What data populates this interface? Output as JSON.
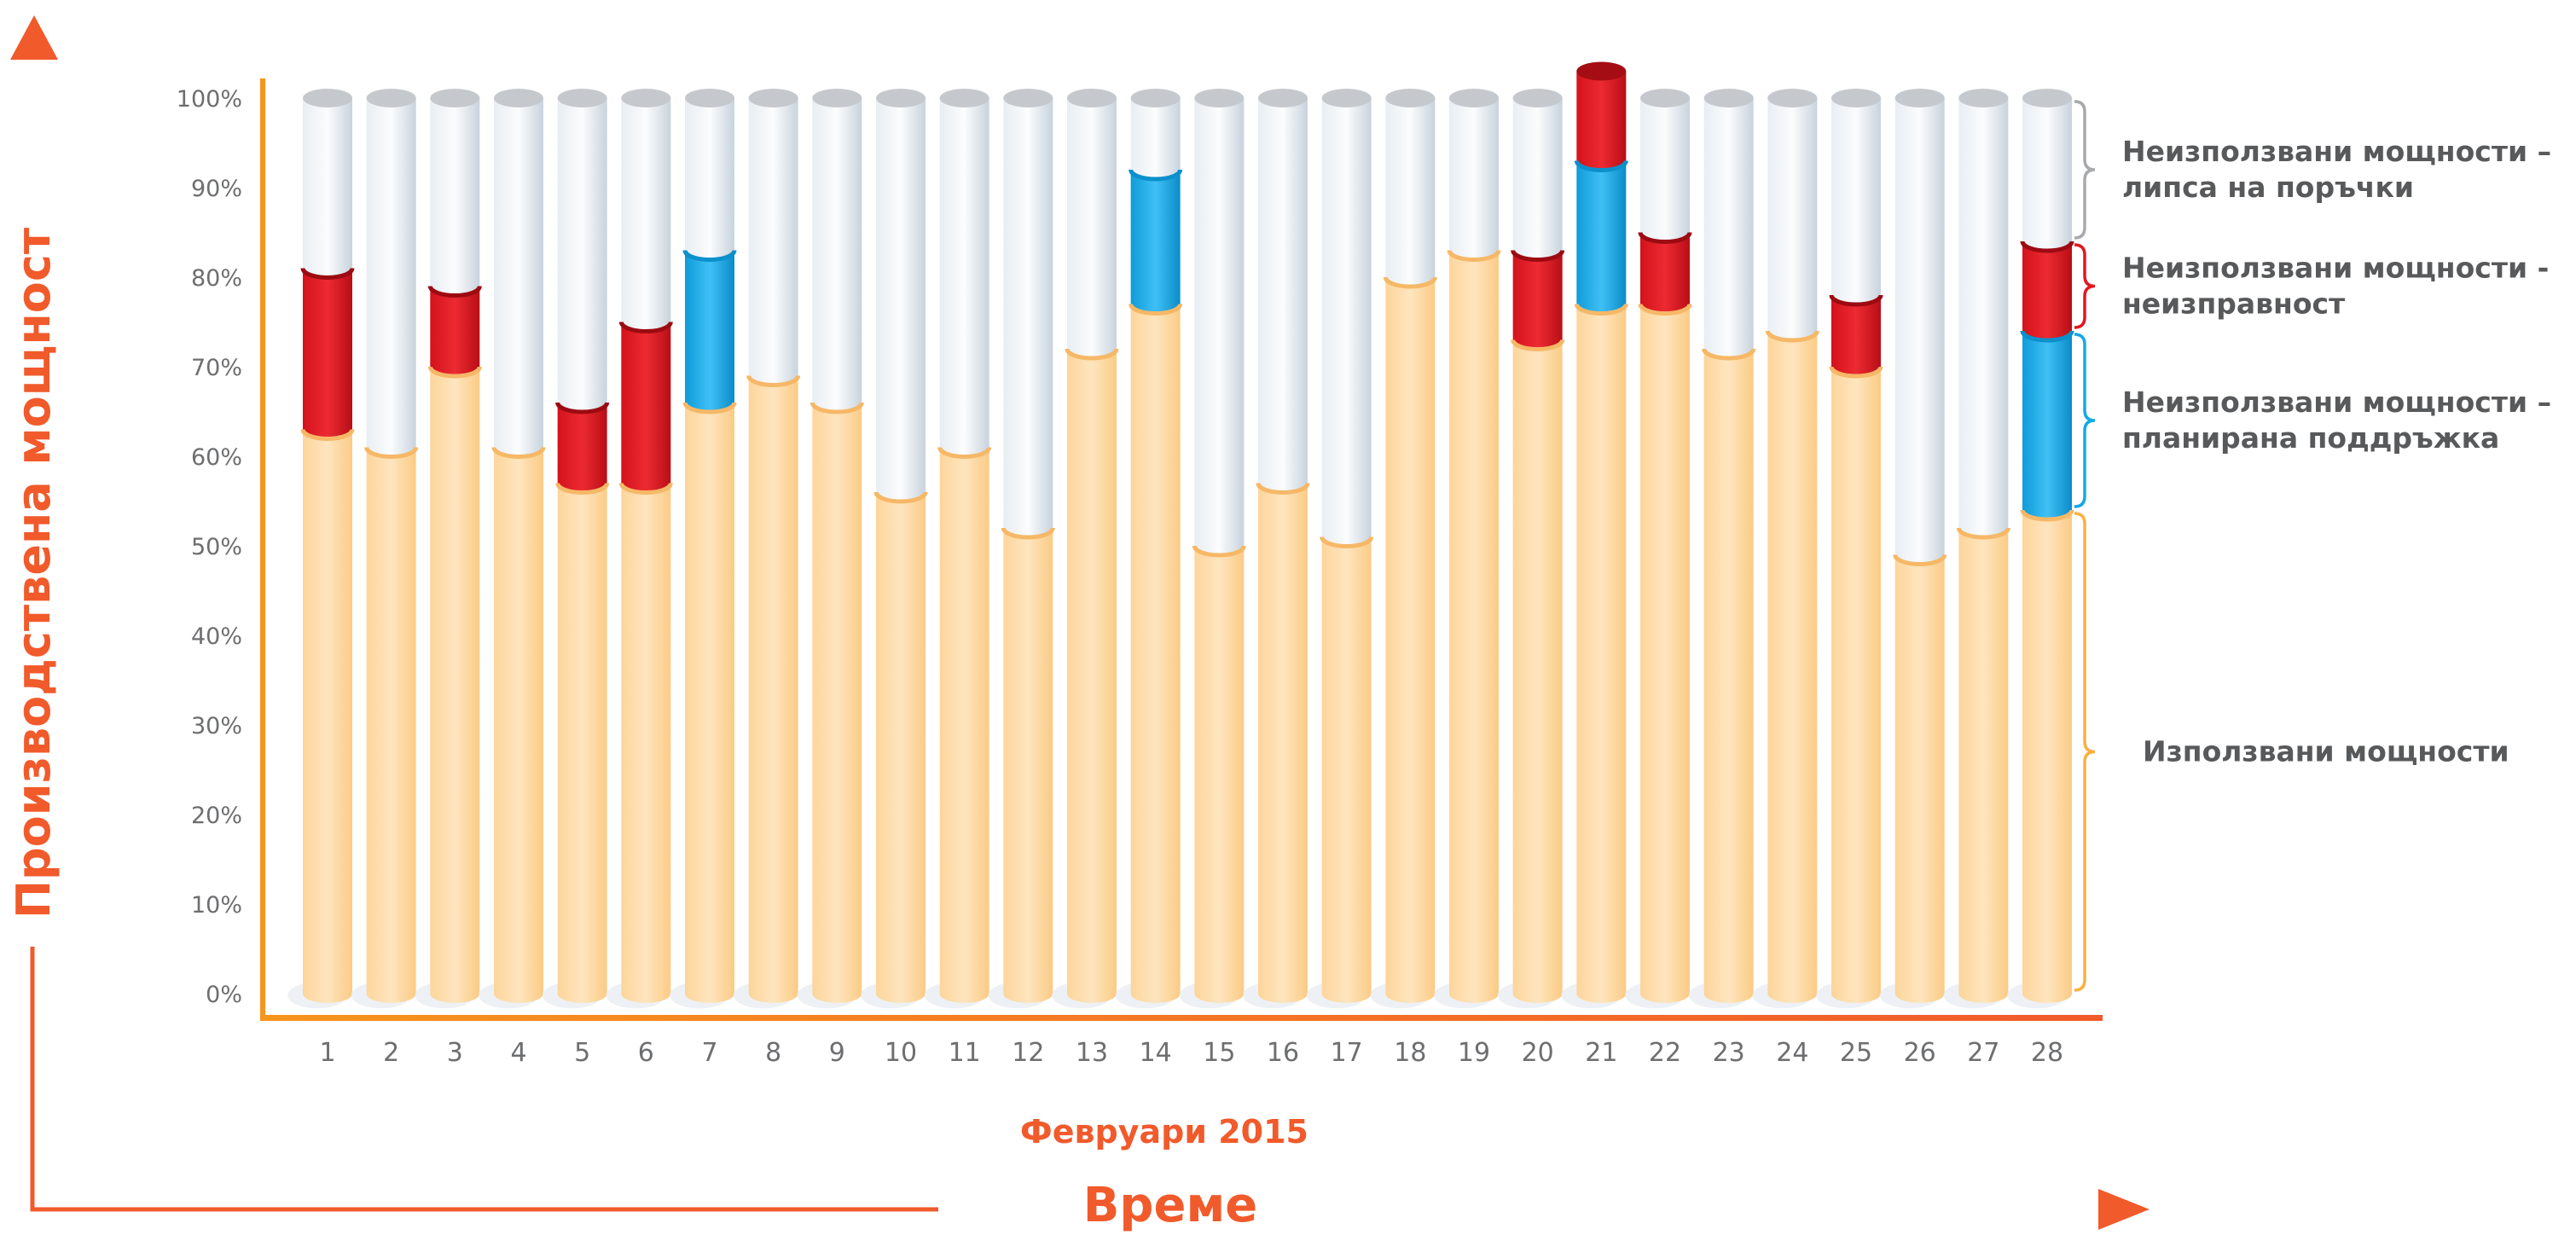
{
  "colors": {
    "used": "#fdd59b",
    "maintenance": "#14a9e8",
    "failure": "#e3161f",
    "no_orders": "#d9e2ea",
    "accent": "#f15a2b",
    "brace_gray": "#a7a9ac",
    "brace_red": "#e3161f",
    "brace_blue": "#14a9e8",
    "brace_orange": "#fbb040"
  },
  "chart_data": {
    "type": "bar",
    "stacked": true,
    "style": "3d-cylinder",
    "ylabel": "Производствена мощност",
    "xlabel": "Време",
    "x_period": "Февруари 2015",
    "ylim": [
      0,
      100
    ],
    "yticks": [
      "0%",
      "10%",
      "20%",
      "30%",
      "40%",
      "50%",
      "60%",
      "70%",
      "80%",
      "90%",
      "100%"
    ],
    "categories": [
      "1",
      "2",
      "3",
      "4",
      "5",
      "6",
      "7",
      "8",
      "9",
      "10",
      "11",
      "12",
      "13",
      "14",
      "15",
      "16",
      "17",
      "18",
      "19",
      "20",
      "21",
      "22",
      "23",
      "24",
      "25",
      "26",
      "27",
      "28"
    ],
    "series": [
      {
        "name": "Използвани мощности",
        "values": [
          63,
          61,
          70,
          61,
          57,
          57,
          66,
          69,
          66,
          56,
          61,
          52,
          72,
          77,
          50,
          57,
          51,
          80,
          83,
          73,
          77,
          77,
          72,
          74,
          70,
          49,
          52,
          54
        ]
      },
      {
        "name": "Неизползвани мощности – планирана поддръжка",
        "values": [
          0,
          0,
          0,
          0,
          0,
          0,
          17,
          0,
          0,
          0,
          0,
          0,
          0,
          15,
          0,
          0,
          0,
          0,
          0,
          0,
          16,
          0,
          0,
          0,
          0,
          0,
          0,
          20
        ]
      },
      {
        "name": "Неизползвани мощности - неизправност",
        "values": [
          18,
          0,
          9,
          0,
          9,
          18,
          0,
          0,
          0,
          0,
          0,
          0,
          0,
          0,
          0,
          0,
          0,
          0,
          0,
          10,
          10,
          8,
          0,
          0,
          8,
          0,
          0,
          10
        ]
      },
      {
        "name": "Неизползвани мощности – липса на поръчки",
        "values": [
          19,
          39,
          21,
          39,
          34,
          25,
          17,
          31,
          34,
          44,
          39,
          48,
          28,
          8,
          50,
          43,
          49,
          20,
          17,
          17,
          0,
          15,
          28,
          26,
          22,
          51,
          48,
          16
        ]
      }
    ],
    "legend": [
      {
        "series": 3,
        "lines": [
          "Неизползвани мощности –",
          "липса на поръчки"
        ]
      },
      {
        "series": 2,
        "lines": [
          "Неизползвани мощности -",
          "неизправност"
        ]
      },
      {
        "series": 1,
        "lines": [
          "Неизползвани мощности –",
          "планирана поддръжка"
        ]
      },
      {
        "series": 0,
        "lines": [
          "Използвани мощности"
        ]
      }
    ],
    "legend_placement": "right"
  }
}
